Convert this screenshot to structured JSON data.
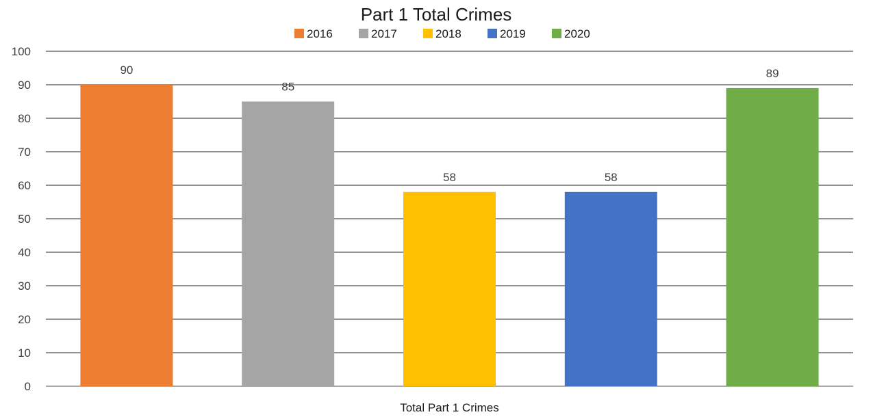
{
  "chart_data": {
    "type": "bar",
    "title": "Part 1 Total Crimes",
    "categories": [
      "Total Part 1 Crimes"
    ],
    "series": [
      {
        "name": "2016",
        "values": [
          90
        ],
        "color": "#ed7d31"
      },
      {
        "name": "2017",
        "values": [
          85
        ],
        "color": "#a5a5a5"
      },
      {
        "name": "2018",
        "values": [
          58
        ],
        "color": "#ffc000"
      },
      {
        "name": "2019",
        "values": [
          58
        ],
        "color": "#4472c4"
      },
      {
        "name": "2020",
        "values": [
          89
        ],
        "color": "#70ad47"
      }
    ],
    "ylim": [
      0,
      100
    ],
    "yticks": [
      0,
      10,
      20,
      30,
      40,
      50,
      60,
      70,
      80,
      90,
      100
    ],
    "grid": true,
    "legend": "top"
  }
}
